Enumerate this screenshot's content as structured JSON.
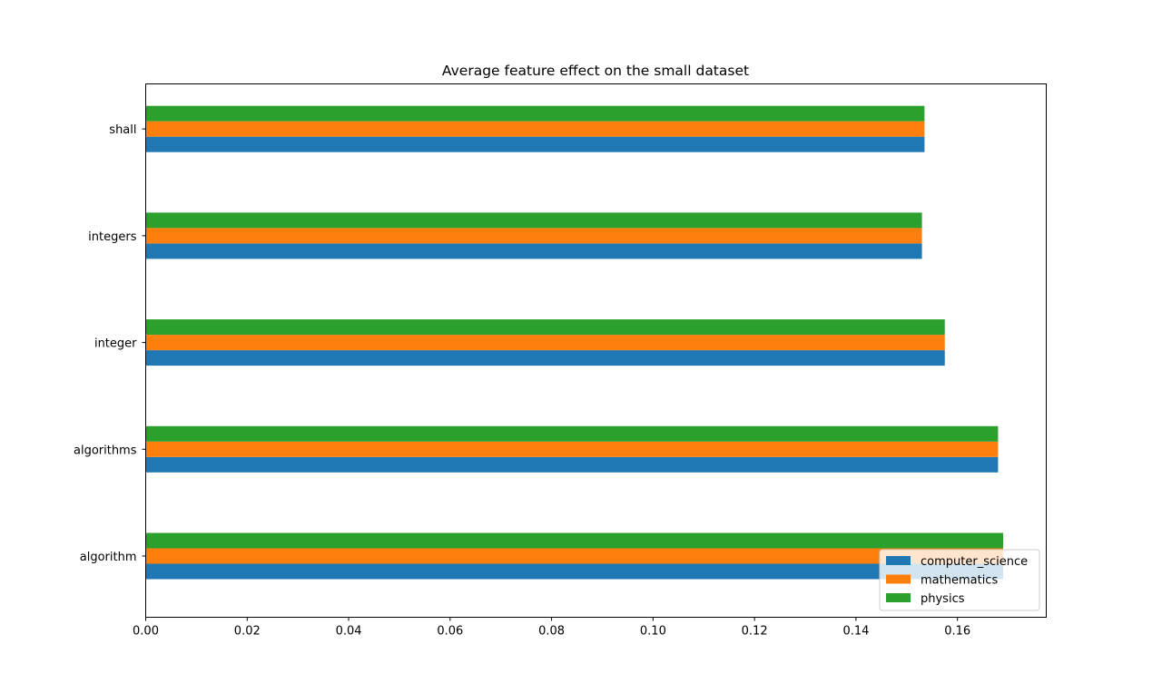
{
  "chart_data": {
    "type": "bar",
    "orientation": "horizontal",
    "title": "Average feature effect on the small dataset",
    "xlabel": "",
    "ylabel": "",
    "categories": [
      "algorithm",
      "algorithms",
      "integer",
      "integers",
      "shall"
    ],
    "series": [
      {
        "name": "computer_science",
        "color": "#1f77b4",
        "values": [
          0.169,
          0.168,
          0.1575,
          0.153,
          0.1535
        ]
      },
      {
        "name": "mathematics",
        "color": "#ff7f0e",
        "values": [
          0.169,
          0.168,
          0.1575,
          0.153,
          0.1535
        ]
      },
      {
        "name": "physics",
        "color": "#2ca02c",
        "values": [
          0.169,
          0.168,
          0.1575,
          0.153,
          0.1535
        ]
      }
    ],
    "xlim": [
      0,
      0.1775
    ],
    "xticks": [
      "0.00",
      "0.02",
      "0.04",
      "0.06",
      "0.08",
      "0.10",
      "0.12",
      "0.14",
      "0.16"
    ],
    "grid": false,
    "legend_position": "lower-right"
  }
}
